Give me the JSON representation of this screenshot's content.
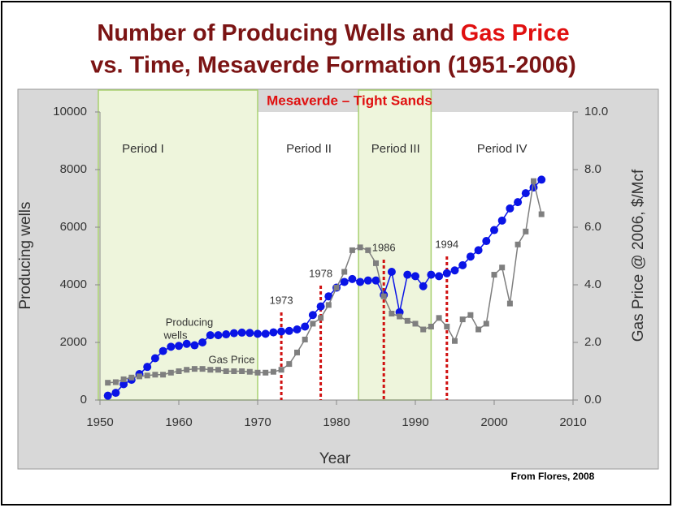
{
  "chart_data": {
    "type": "line",
    "title": {
      "parts": [
        "Number of Producing Wells and",
        "Gas Price",
        "vs. Time, Mesaverde Formation (1951-2006)"
      ]
    },
    "subtitle": "Mesaverde – Tight Sands",
    "x_label": "Year",
    "y_label": "Producing wells",
    "y2_label": "Gas Price @ 2006, $/Mcf",
    "source": "From Flores, 2008",
    "xlim": [
      1950,
      2010
    ],
    "xticks": [
      1950,
      1960,
      1970,
      1980,
      1990,
      2000,
      2010
    ],
    "ylim": [
      0,
      10000
    ],
    "yticks": [
      0,
      2000,
      4000,
      6000,
      8000,
      10000
    ],
    "y2lim": [
      0,
      10
    ],
    "y2ticks": [
      {
        "value": 0,
        "label": "0.0"
      },
      {
        "value": 2,
        "label": "2.0"
      },
      {
        "value": 4,
        "label": "4.0"
      },
      {
        "value": 6,
        "label": "6.0"
      },
      {
        "value": 8,
        "label": "8.0"
      },
      {
        "value": 10,
        "label": "10.0"
      }
    ],
    "periods": [
      {
        "label": "Period I",
        "start": 1950,
        "end": 1970,
        "shaded": true
      },
      {
        "label": "Period II",
        "start": 1970,
        "end": 1983,
        "shaded": false
      },
      {
        "label": "Period III",
        "start": 1983,
        "end": 1992,
        "shaded": true
      },
      {
        "label": "Period IV",
        "start": 1992,
        "end": 2010,
        "shaded": false
      }
    ],
    "events": [
      1973,
      1978,
      1986,
      1994
    ],
    "annotations": [
      "Producing",
      "wells",
      "Gas Price"
    ],
    "x": [
      1951,
      1952,
      1953,
      1954,
      1955,
      1956,
      1957,
      1958,
      1959,
      1960,
      1961,
      1962,
      1963,
      1964,
      1965,
      1966,
      1967,
      1968,
      1969,
      1970,
      1971,
      1972,
      1973,
      1974,
      1975,
      1976,
      1977,
      1978,
      1979,
      1980,
      1981,
      1982,
      1983,
      1984,
      1985,
      1986,
      1987,
      1988,
      1989,
      1990,
      1991,
      1992,
      1993,
      1994,
      1995,
      1996,
      1997,
      1998,
      1999,
      2000,
      2001,
      2002,
      2003,
      2004,
      2005,
      2006
    ],
    "series": [
      {
        "name": "Producing wells",
        "color": "#0a14e6",
        "marker": "circle",
        "values": [
          150,
          250,
          550,
          700,
          900,
          1150,
          1450,
          1700,
          1850,
          1880,
          1950,
          1900,
          2000,
          2250,
          2250,
          2280,
          2320,
          2340,
          2330,
          2300,
          2300,
          2350,
          2380,
          2400,
          2450,
          2550,
          2950,
          3250,
          3600,
          3900,
          4100,
          4200,
          4100,
          4150,
          4150,
          3650,
          4450,
          3050,
          4350,
          4300,
          3950,
          4350,
          4300,
          4400,
          4500,
          4680,
          4980,
          5200,
          5520,
          5900,
          6230,
          6650,
          6870,
          7180,
          7380,
          7650
        ]
      },
      {
        "name": "Gas Price",
        "color": "#7f7f7f",
        "marker": "square",
        "axis": "y2",
        "values": [
          0.6,
          0.62,
          0.72,
          0.78,
          0.82,
          0.85,
          0.88,
          0.88,
          0.95,
          1.0,
          1.05,
          1.08,
          1.08,
          1.05,
          1.05,
          1.0,
          1.0,
          1.0,
          0.98,
          0.95,
          0.95,
          0.98,
          1.05,
          1.25,
          1.65,
          2.1,
          2.65,
          2.85,
          3.3,
          3.9,
          4.45,
          5.2,
          5.3,
          5.2,
          4.75,
          3.6,
          3.0,
          2.9,
          2.75,
          2.65,
          2.45,
          2.55,
          2.85,
          2.55,
          2.05,
          2.8,
          2.95,
          2.45,
          2.65,
          4.35,
          4.6,
          3.35,
          5.4,
          5.85,
          7.6,
          6.45
        ]
      }
    ]
  }
}
